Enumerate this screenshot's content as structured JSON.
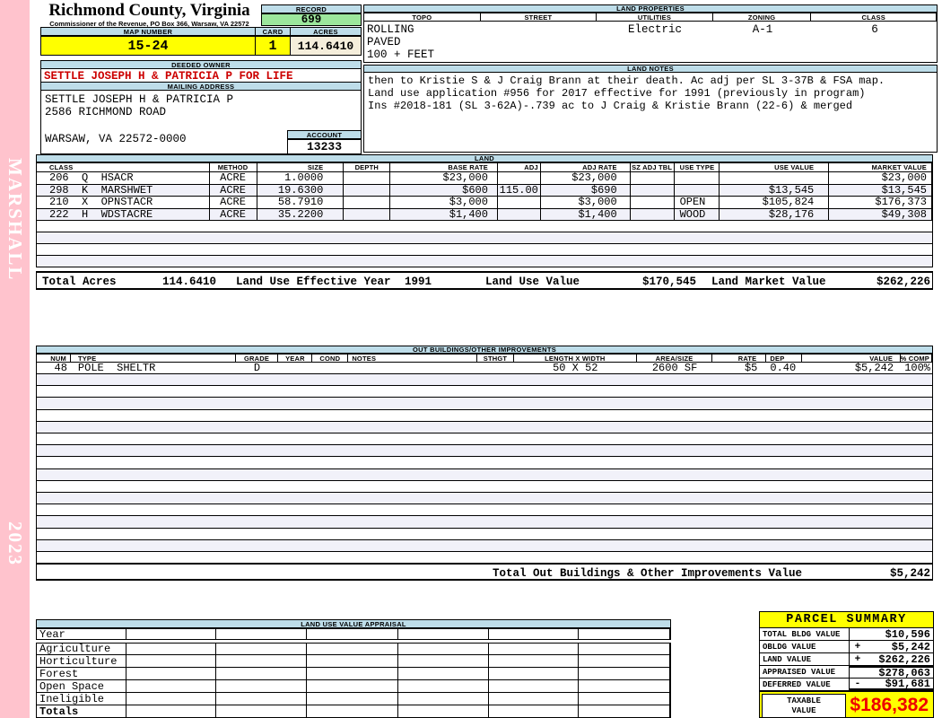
{
  "sidebar": {
    "watermark": "MARSHALL",
    "year": "2023"
  },
  "header": {
    "county_title": "Richmond County, Virginia",
    "county_subtitle": "Commissioner of the Revenue, PO Box 366, Warsaw, VA 22572",
    "record_label": "RECORD",
    "record_value": "699",
    "map_number_label": "MAP NUMBER",
    "map_number_value": "15-24",
    "card_label": "CARD",
    "card_value": "1",
    "acres_label": "ACRES",
    "acres_value": "114.6410",
    "deeded_owner_label": "DEEDED OWNER",
    "deeded_owner_value": "SETTLE JOSEPH H & PATRICIA P FOR LIFE",
    "mailing_address_label": "MAILING ADDRESS",
    "mailing_address_lines": [
      "SETTLE JOSEPH H & PATRICIA P",
      "2586 RICHMOND ROAD",
      "",
      "WARSAW, VA 22572-0000"
    ],
    "account_label": "ACCOUNT",
    "account_value": "13233"
  },
  "land_properties": {
    "section_label": "LAND PROPERTIES",
    "columns": [
      "TOPO",
      "STREET",
      "UTILITIES",
      "ZONING",
      "CLASS"
    ],
    "topo_lines": [
      "ROLLING",
      "PAVED",
      "100 + FEET"
    ],
    "street": "",
    "utilities": "Electric",
    "zoning": "A-1",
    "class": "6"
  },
  "land_notes": {
    "section_label": "LAND NOTES",
    "lines": [
      "then to Kristie S & J Craig Brann at their death. Ac adj per SL 3-37B & FSA map.",
      "Land use application #956 for 2017 effective for 1991 (previously in program)",
      "Ins #2018-181 (SL 3-62A)-.739 ac to J Craig & Kristie Brann (22-6) & merged"
    ]
  },
  "land": {
    "section_label": "LAND",
    "columns": [
      "CLASS",
      "METHOD",
      "SIZE",
      "DEPTH",
      "BASE RATE",
      "ADJ",
      "ADJ RATE",
      "SZ ADJ TBL",
      "USE TYPE",
      "USE VALUE",
      "MARKET VALUE"
    ],
    "rows": [
      [
        "206  Q  HSACR",
        "ACRE",
        "1.0000",
        "",
        "$23,000",
        "",
        "$23,000",
        "",
        "",
        "",
        "$23,000"
      ],
      [
        "298  K  MARSHWET",
        "ACRE",
        "19.6300",
        "",
        "$600",
        "115.00",
        "$690",
        "",
        "",
        "$13,545",
        "$13,545"
      ],
      [
        "210  X  OPNSTACR",
        "ACRE",
        "58.7910",
        "",
        "$3,000",
        "",
        "$3,000",
        "",
        "OPEN",
        "$105,824",
        "$176,373"
      ],
      [
        "222  H  WDSTACRE",
        "ACRE",
        "35.2200",
        "",
        "$1,400",
        "",
        "$1,400",
        "",
        "WOOD",
        "$28,176",
        "$49,308"
      ]
    ],
    "empty_row_count": 4,
    "totals": {
      "total_acres_label": "Total Acres",
      "total_acres": "114.6410",
      "effective_year_label": "Land Use Effective Year",
      "effective_year": "1991",
      "use_value_label": "Land Use Value",
      "use_value": "$170,545",
      "market_value_label": "Land Market Value",
      "market_value": "$262,226"
    }
  },
  "out_buildings": {
    "section_label": "OUT BUILDINGS/OTHER IMPROVEMENTS",
    "columns": [
      "NUM",
      "TYPE",
      "GRADE",
      "YEAR",
      "COND",
      "NOTES",
      "STHGT",
      "LENGTH X WIDTH",
      "AREA/SIZE",
      "RATE",
      "DEP",
      "VALUE",
      "% COMP"
    ],
    "rows": [
      [
        "48",
        "POLE  SHELTR",
        "D",
        "",
        "",
        "",
        "",
        "50 X 52",
        "2600 SF",
        "$5",
        "0.40",
        "$5,242",
        "100%"
      ]
    ],
    "empty_row_count": 16,
    "total_label": "Total Out Buildings & Other Improvements Value",
    "total_value": "$5,242"
  },
  "land_use_appraisal": {
    "section_label": "LAND USE VALUE APPRAISAL",
    "row_labels": [
      "Year",
      "Agriculture",
      "Horticulture",
      "Forest",
      "Open Space",
      "Ineligible",
      "Totals"
    ],
    "column_count": 6
  },
  "parcel_summary": {
    "title": "PARCEL SUMMARY",
    "rows": [
      {
        "label": "TOTAL BLDG VALUE",
        "op": "",
        "value": "$10,596"
      },
      {
        "label": "OBLDG VALUE",
        "op": "+",
        "value": "$5,242"
      },
      {
        "label": "LAND VALUE",
        "op": "+",
        "value": "$262,226"
      },
      {
        "label": "APPRAISED VALUE",
        "op": "",
        "value": "$278,063"
      },
      {
        "label": "DEFERRED VALUE",
        "op": "-",
        "value": "$91,681"
      }
    ],
    "taxable": {
      "label_line1": "TAXABLE",
      "label_line2": "VALUE",
      "value": "$186,382"
    }
  },
  "colors": {
    "header_blue": "#bedde9",
    "record_green": "#9ce79c",
    "highlight_yellow": "#ffff00",
    "acres_cream": "#f5eedb",
    "sidebar_pink": "#ffc3cd",
    "owner_red": "#cc0000",
    "taxable_red": "#ee0000",
    "stripe_lavender": "#f1f1f9"
  }
}
